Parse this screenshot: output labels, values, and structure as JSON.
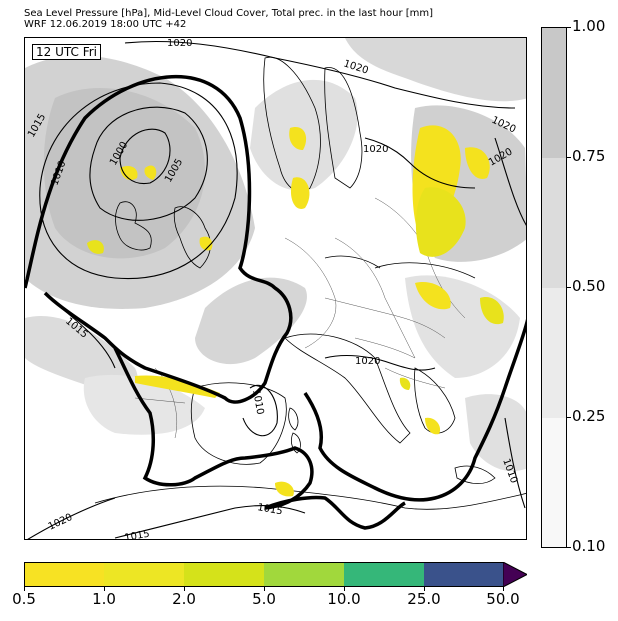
{
  "header": {
    "line1": "Sea Level Pressure [hPa], Mid-Level Cloud Cover, Total prec. in the last hour [mm]",
    "line2": "WRF 12.06.2019 18:00 UTC +42"
  },
  "map": {
    "time_label": "12 UTC Fri",
    "isobar_labels": [
      "1020",
      "1020",
      "1020",
      "1020",
      "1020",
      "1020",
      "1020",
      "1015",
      "1015",
      "1015",
      "1015",
      "1010",
      "1010",
      "1010",
      "1005",
      "1000"
    ]
  },
  "cloud_colorbar": {
    "ticks": [
      "1.00",
      "0.75",
      "0.50",
      "0.25",
      "0.10"
    ],
    "colors": [
      "#c8c8c8",
      "#dcdcdc",
      "#ebebeb",
      "#f8f8f8"
    ]
  },
  "precip_colorbar": {
    "ticks": [
      "0.5",
      "1.0",
      "2.0",
      "5.0",
      "10.0",
      "25.0",
      "50.0"
    ],
    "colors": [
      "#f7e223",
      "#ede624",
      "#d5e21a",
      "#a1d83c",
      "#35b779",
      "#3a528b",
      "#440154"
    ]
  }
}
